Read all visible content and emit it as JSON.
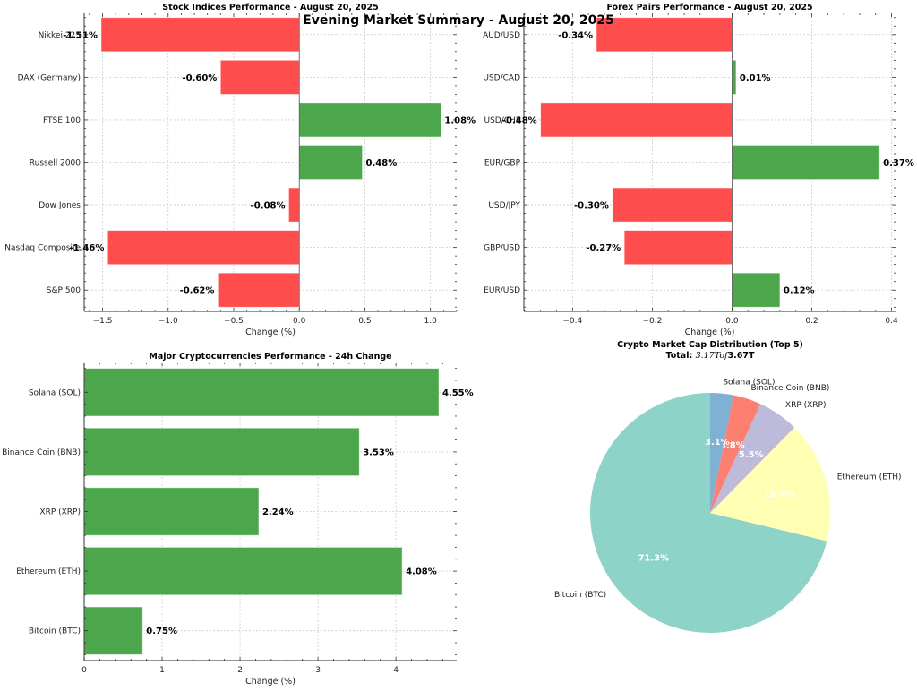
{
  "page": {
    "suptitle": "Evening Market Summary - August 20, 2025"
  },
  "colors": {
    "positive": "#4ca64c",
    "negative": "#ff4c4c",
    "grid": "#cccccc",
    "pie": [
      "#8dd3c7",
      "#ffffb3",
      "#bebada",
      "#fb8072",
      "#80b1d3"
    ]
  },
  "chart_data": [
    {
      "id": "stocks",
      "type": "bar",
      "orientation": "horizontal",
      "title": "Stock Indices Performance - August 20, 2025",
      "xlabel": "Change (%)",
      "ylabel": "",
      "categories": [
        "S&P 500",
        "Nasdaq Composite",
        "Dow Jones",
        "Russell 2000",
        "FTSE 100",
        "DAX (Germany)",
        "Nikkei 225"
      ],
      "values": [
        -0.62,
        -1.46,
        -0.08,
        0.48,
        1.08,
        -0.6,
        -1.51
      ],
      "value_labels": [
        "-0.62%",
        "-1.46%",
        "-0.08%",
        "0.48%",
        "1.08%",
        "-0.60%",
        "-1.51%"
      ],
      "xlim": [
        -1.64,
        1.2
      ],
      "xticks": [
        -1.5,
        -1.0,
        -0.5,
        0.0,
        0.5,
        1.0
      ],
      "xtick_labels": [
        "−1.5",
        "−1.0",
        "−0.5",
        "0.0",
        "0.5",
        "1.0"
      ],
      "grid": true
    },
    {
      "id": "forex",
      "type": "bar",
      "orientation": "horizontal",
      "title": "Forex Pairs Performance - August 20, 2025",
      "xlabel": "Change (%)",
      "ylabel": "",
      "categories": [
        "EUR/USD",
        "GBP/USD",
        "USD/JPY",
        "EUR/GBP",
        "USD/CHF",
        "USD/CAD",
        "AUD/USD"
      ],
      "values": [
        0.12,
        -0.27,
        -0.3,
        0.37,
        -0.48,
        0.01,
        -0.34
      ],
      "value_labels": [
        "0.12%",
        "-0.27%",
        "-0.30%",
        "0.37%",
        "-0.48%",
        "0.01%",
        "-0.34%"
      ],
      "xlim": [
        -0.522,
        0.41
      ],
      "xticks": [
        -0.4,
        -0.2,
        0.0,
        0.2,
        0.4
      ],
      "xtick_labels": [
        "−0.4",
        "−0.2",
        "0.0",
        "0.2",
        "0.4"
      ],
      "grid": true
    },
    {
      "id": "crypto",
      "type": "bar",
      "orientation": "horizontal",
      "title": "Major Cryptocurrencies Performance - 24h Change",
      "xlabel": "Change (%)",
      "ylabel": "",
      "categories": [
        "Bitcoin (BTC)",
        "Ethereum (ETH)",
        "XRP (XRP)",
        "Binance Coin (BNB)",
        "Solana (SOL)"
      ],
      "values": [
        0.75,
        4.08,
        2.24,
        3.53,
        4.55
      ],
      "value_labels": [
        "0.75%",
        "4.08%",
        "2.24%",
        "3.53%",
        "4.55%"
      ],
      "xlim": [
        0,
        4.78
      ],
      "xticks": [
        0,
        1,
        2,
        3,
        4
      ],
      "xtick_labels": [
        "0",
        "1",
        "2",
        "3",
        "4"
      ],
      "grid": true
    },
    {
      "id": "marketcap",
      "type": "pie",
      "title": "Crypto Market Cap Distribution (Top 5)",
      "subtitle_prefix": "Total: ",
      "subtitle_math": "3.17Tof",
      "subtitle_suffix": "3.67T",
      "labels": [
        "Bitcoin (BTC)",
        "Ethereum (ETH)",
        "XRP (XRP)",
        "Binance Coin (BNB)",
        "Solana (SOL)"
      ],
      "values": [
        71.3,
        16.4,
        5.5,
        3.8,
        3.1
      ],
      "pct_labels": [
        "71.3%",
        "16.4%",
        "5.5%",
        "3.8%",
        "3.1%"
      ],
      "start_angle_deg": 90,
      "direction": "counterclockwise"
    }
  ]
}
